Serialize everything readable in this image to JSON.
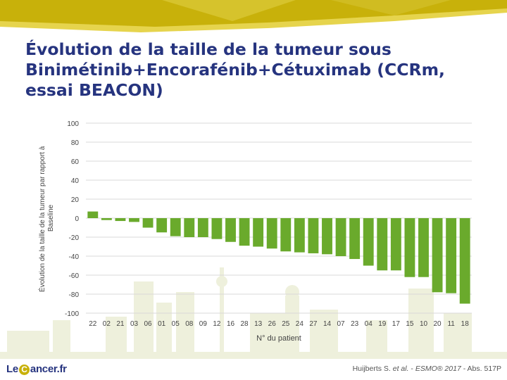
{
  "slide": {
    "title": "Évolution de la taille de la tumeur sous Binimétinib+Encorafénib+Cétuximab (CCRm, essai BEACON)",
    "logo": {
      "prefix": "Le",
      "mark": "C",
      "suffix": "ancer.fr"
    },
    "citation": {
      "authors": "Huijberts S. ",
      "etal": "et al.",
      "sep1": " - ",
      "journal": "ESMO® 2017",
      "rest": " - Abs. 517P"
    },
    "colors": {
      "title": "#26347f",
      "banner_dark": "#c8b10a",
      "banner_light": "#e6d44d",
      "bar": "#6aaa2c"
    }
  },
  "chart_data": {
    "type": "bar",
    "categories": [
      "22",
      "02",
      "21",
      "03",
      "06",
      "01",
      "05",
      "08",
      "09",
      "12",
      "16",
      "28",
      "13",
      "26",
      "25",
      "24",
      "27",
      "14",
      "07",
      "23",
      "04",
      "19",
      "17",
      "15",
      "10",
      "20",
      "11",
      "18"
    ],
    "values": [
      7,
      -2,
      -3,
      -4,
      -10,
      -15,
      -19,
      -20,
      -20,
      -22,
      -25,
      -29,
      -30,
      -32,
      -35,
      -36,
      -37,
      -38,
      -40,
      -43,
      -50,
      -55,
      -55,
      -62,
      -62,
      -78,
      -79,
      -90
    ],
    "xlabel": "N° du patient",
    "ylabel": "Évolution de la taille de la tumeur par rapport à Baseline",
    "ylabel_lines": [
      "Évolution de la taille de la tumeur par rapport à",
      "Baseline"
    ],
    "yticks": [
      100,
      80,
      60,
      40,
      20,
      0,
      -20,
      -40,
      -60,
      -80,
      -100
    ],
    "ylim": [
      -100,
      100
    ],
    "grid": true,
    "color": "#6aaa2c"
  }
}
